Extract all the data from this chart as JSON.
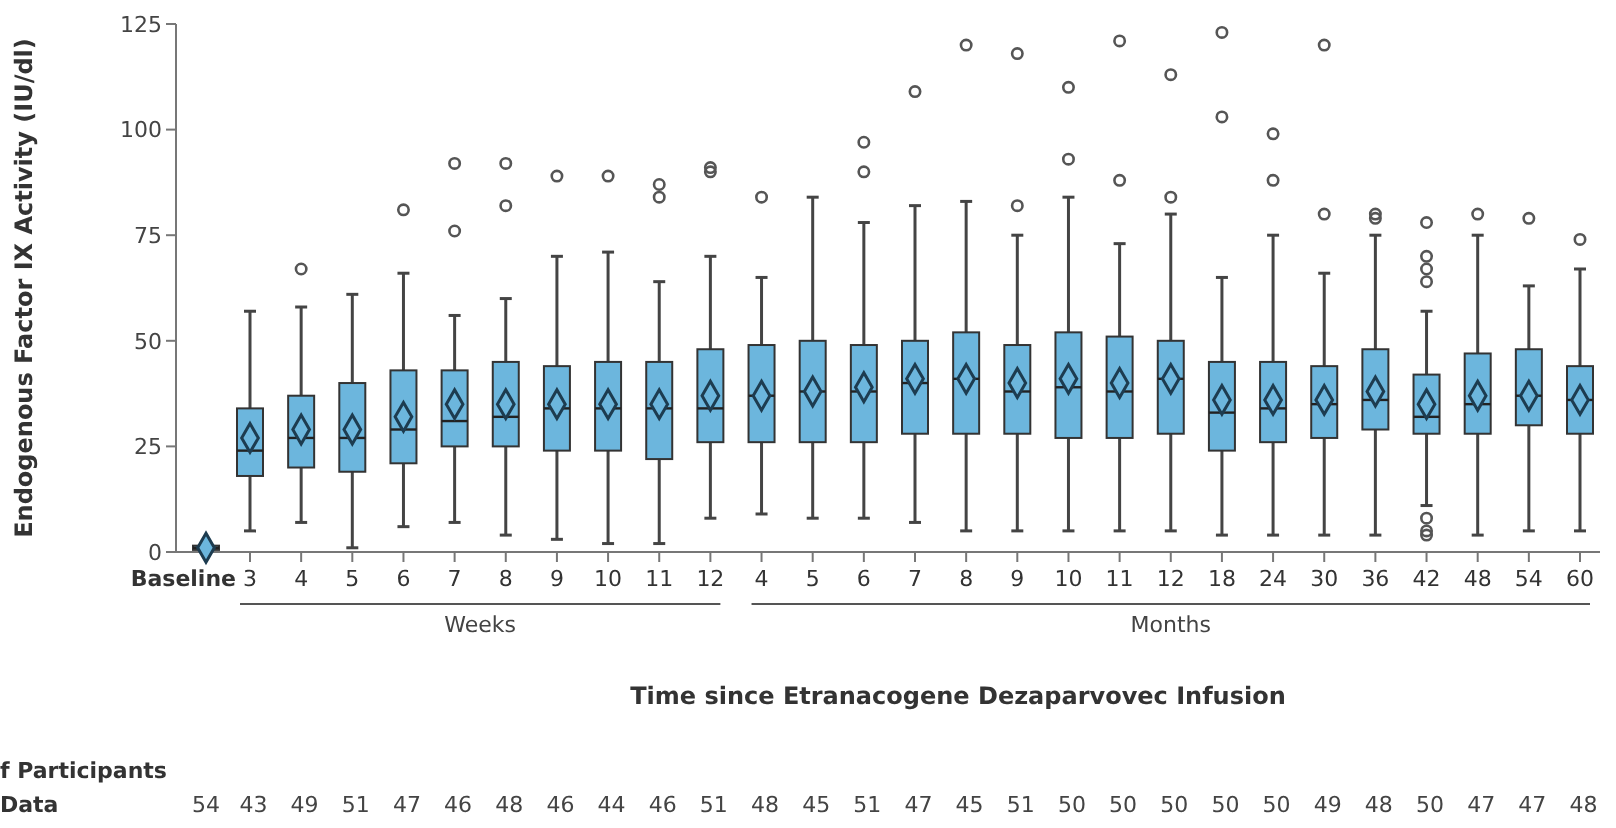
{
  "chart_data": {
    "type": "box",
    "ylabel": "Endogenous Factor IX Activity (IU/dl)",
    "xlabel": "Time since Etranacogene Dezaparvovec Infusion",
    "categories": [
      "Baseline",
      "3",
      "4",
      "5",
      "6",
      "7",
      "8",
      "9",
      "10",
      "11",
      "12",
      "4",
      "5",
      "6",
      "7",
      "8",
      "9",
      "10",
      "11",
      "12",
      "18",
      "24",
      "30",
      "36",
      "42",
      "48",
      "54",
      "60"
    ],
    "color": "#6cb6dd",
    "marker": "diamond",
    "ylim": [
      0,
      125
    ],
    "yticks": [
      0,
      25,
      50,
      75,
      100,
      125
    ],
    "grid": false,
    "boxes": [
      {
        "low": 0,
        "q1": 0.5,
        "median": 1,
        "q3": 1.5,
        "high": 2,
        "mean": 1
      },
      {
        "low": 5,
        "q1": 18,
        "median": 24,
        "q3": 34,
        "high": 57,
        "mean": 27
      },
      {
        "low": 7,
        "q1": 20,
        "median": 27,
        "q3": 37,
        "high": 58,
        "mean": 29,
        "outliers": [
          67
        ]
      },
      {
        "low": 1,
        "q1": 19,
        "median": 27,
        "q3": 40,
        "high": 61,
        "mean": 29
      },
      {
        "low": 6,
        "q1": 21,
        "median": 29,
        "q3": 43,
        "high": 66,
        "mean": 32,
        "outliers": [
          81
        ]
      },
      {
        "low": 7,
        "q1": 25,
        "median": 31,
        "q3": 43,
        "high": 56,
        "mean": 35,
        "outliers": [
          76,
          92
        ]
      },
      {
        "low": 4,
        "q1": 25,
        "median": 32,
        "q3": 45,
        "high": 60,
        "mean": 35,
        "outliers": [
          82,
          92
        ]
      },
      {
        "low": 3,
        "q1": 24,
        "median": 34,
        "q3": 44,
        "high": 70,
        "mean": 35,
        "outliers": [
          89
        ]
      },
      {
        "low": 2,
        "q1": 24,
        "median": 34,
        "q3": 45,
        "high": 71,
        "mean": 35,
        "outliers": [
          89
        ]
      },
      {
        "low": 2,
        "q1": 22,
        "median": 34,
        "q3": 45,
        "high": 64,
        "mean": 35,
        "outliers": [
          84,
          87
        ]
      },
      {
        "low": 8,
        "q1": 26,
        "median": 34,
        "q3": 48,
        "high": 70,
        "mean": 37,
        "outliers": [
          90,
          91
        ]
      },
      {
        "low": 9,
        "q1": 26,
        "median": 37,
        "q3": 49,
        "high": 65,
        "mean": 37,
        "outliers": [
          84
        ]
      },
      {
        "low": 8,
        "q1": 26,
        "median": 38,
        "q3": 50,
        "high": 84,
        "mean": 38
      },
      {
        "low": 8,
        "q1": 26,
        "median": 38,
        "q3": 49,
        "high": 78,
        "mean": 39,
        "outliers": [
          90,
          97
        ]
      },
      {
        "low": 7,
        "q1": 28,
        "median": 40,
        "q3": 50,
        "high": 82,
        "mean": 41,
        "outliers": [
          109
        ]
      },
      {
        "low": 5,
        "q1": 28,
        "median": 41,
        "q3": 52,
        "high": 83,
        "mean": 41,
        "outliers": [
          120
        ]
      },
      {
        "low": 5,
        "q1": 28,
        "median": 38,
        "q3": 49,
        "high": 75,
        "mean": 40,
        "outliers": [
          82,
          118
        ]
      },
      {
        "low": 5,
        "q1": 27,
        "median": 39,
        "q3": 52,
        "high": 84,
        "mean": 41,
        "outliers": [
          93,
          110
        ]
      },
      {
        "low": 5,
        "q1": 27,
        "median": 38,
        "q3": 51,
        "high": 73,
        "mean": 40,
        "outliers": [
          88,
          121
        ]
      },
      {
        "low": 5,
        "q1": 28,
        "median": 41,
        "q3": 50,
        "high": 80,
        "mean": 41,
        "outliers": [
          84,
          113
        ]
      },
      {
        "low": 4,
        "q1": 24,
        "median": 33,
        "q3": 45,
        "high": 65,
        "mean": 36,
        "outliers": [
          103,
          123
        ]
      },
      {
        "low": 4,
        "q1": 26,
        "median": 34,
        "q3": 45,
        "high": 75,
        "mean": 36,
        "outliers": [
          88,
          99
        ]
      },
      {
        "low": 4,
        "q1": 27,
        "median": 35,
        "q3": 44,
        "high": 66,
        "mean": 36,
        "outliers": [
          80,
          120
        ]
      },
      {
        "low": 4,
        "q1": 29,
        "median": 36,
        "q3": 48,
        "high": 75,
        "mean": 38,
        "outliers": [
          79,
          80
        ]
      },
      {
        "low": 11,
        "q1": 28,
        "median": 32,
        "q3": 42,
        "high": 57,
        "mean": 35,
        "outliers": [
          4,
          5,
          8,
          64,
          67,
          70,
          78
        ]
      },
      {
        "low": 4,
        "q1": 28,
        "median": 35,
        "q3": 47,
        "high": 75,
        "mean": 37,
        "outliers": [
          80
        ]
      },
      {
        "low": 5,
        "q1": 30,
        "median": 37,
        "q3": 48,
        "high": 63,
        "mean": 37,
        "outliers": [
          79
        ]
      },
      {
        "low": 5,
        "q1": 28,
        "median": 36,
        "q3": 44,
        "high": 67,
        "mean": 36,
        "outliers": [
          74
        ]
      }
    ],
    "annotations": [
      "Weeks",
      "Months",
      "f Participants",
      "Data",
      "54 43 49 51 47 46 48 46 44 46 51 48 45 51 47 45 51 50 50 50 50 50 49 48 50 47 47 48"
    ]
  }
}
